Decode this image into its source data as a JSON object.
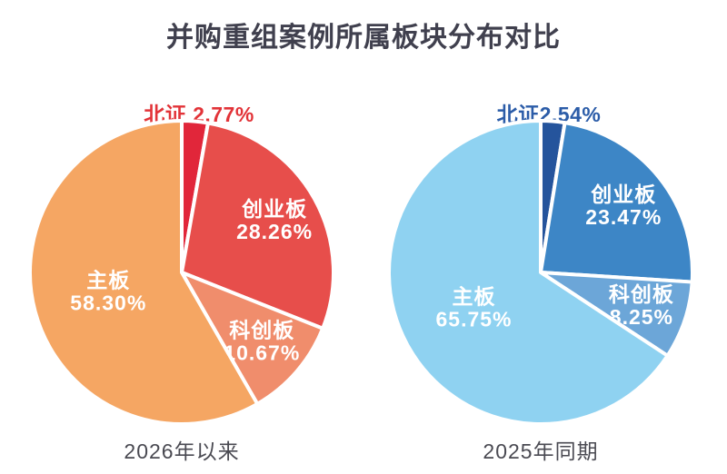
{
  "title": "并购重组案例所属板块分布对比",
  "colors": {
    "title_text": "#40404e",
    "caption_text": "#4a4a52",
    "inner_label_text": "#ffffff",
    "background": "#ffffff",
    "slice_gap_stroke": "#ffffff"
  },
  "chart_data": [
    {
      "type": "pie",
      "caption": "2026年以来",
      "callout": {
        "text": "北证 2.77%",
        "color": "#e23338",
        "target_segment": "北证"
      },
      "start_angle_deg": 0,
      "direction": "clockwise",
      "legend_position": "labels-inside",
      "segments": [
        {
          "label": "北证",
          "value": 2.77,
          "display": "2.77%",
          "color": "#e1263a",
          "inner_label": false
        },
        {
          "label": "创业板",
          "value": 28.26,
          "display": "28.26%",
          "color": "#e74e4b",
          "inner_label": true
        },
        {
          "label": "科创板",
          "value": 10.67,
          "display": "10.67%",
          "color": "#f08d6c",
          "inner_label": true
        },
        {
          "label": "主板",
          "value": 58.3,
          "display": "58.30%",
          "color": "#f5a663",
          "inner_label": true
        }
      ]
    },
    {
      "type": "pie",
      "caption": "2025年同期",
      "callout": {
        "text": "北证2.54%",
        "color": "#2b5ca8",
        "target_segment": "北证"
      },
      "start_angle_deg": 0,
      "direction": "clockwise",
      "legend_position": "labels-inside",
      "segments": [
        {
          "label": "北证",
          "value": 2.54,
          "display": "2.54%",
          "color": "#25549c",
          "inner_label": false
        },
        {
          "label": "创业板",
          "value": 23.47,
          "display": "23.47%",
          "color": "#3d86c6",
          "inner_label": true
        },
        {
          "label": "科创板",
          "value": 8.25,
          "display": "8.25%",
          "color": "#6ca6d8",
          "inner_label": true
        },
        {
          "label": "主板",
          "value": 65.75,
          "display": "65.75%",
          "color": "#8fd2f1",
          "inner_label": true
        }
      ]
    }
  ]
}
